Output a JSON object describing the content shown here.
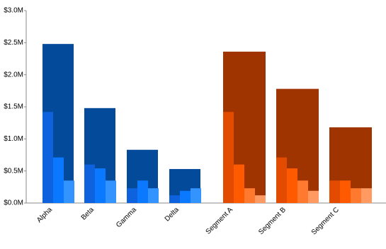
{
  "chart_data": {
    "type": "bar",
    "categories": [
      "Alpha",
      "Beta",
      "Gamma",
      "Delta",
      null,
      "Segment A",
      "Segment B",
      "Segment C"
    ],
    "series": [
      {
        "color": "#034a9b",
        "values": [
          2.48,
          1.48,
          0.83,
          0.53,
          null,
          null,
          null,
          null
        ]
      },
      {
        "color": "#a03400",
        "values": [
          null,
          null,
          null,
          null,
          null,
          2.36,
          1.78,
          1.18
        ]
      },
      {
        "color": "#0f62dd",
        "values": [
          1.42,
          0.6,
          0.23,
          0.12,
          null,
          null,
          null,
          null
        ]
      },
      {
        "color": "#0a78ff",
        "values": [
          0.71,
          0.54,
          0.35,
          0.19,
          null,
          null,
          null,
          null
        ]
      },
      {
        "color": "#3393ff",
        "values": [
          0.35,
          0.35,
          0.23,
          0.23,
          null,
          null,
          null,
          null
        ]
      },
      {
        "color": "#e34c00",
        "values": [
          null,
          null,
          null,
          null,
          null,
          1.42,
          0.71,
          0.35
        ]
      },
      {
        "color": "#ff5a00",
        "values": [
          null,
          null,
          null,
          null,
          null,
          0.6,
          0.54,
          0.35
        ]
      },
      {
        "color": "#ff7a2e",
        "values": [
          null,
          null,
          null,
          null,
          null,
          0.23,
          0.35,
          0.23
        ]
      },
      {
        "color": "#ff9a63",
        "values": [
          null,
          null,
          null,
          null,
          null,
          0.12,
          0.19,
          0.23
        ]
      }
    ],
    "ylim": [
      0,
      3.0
    ],
    "yticks": [
      {
        "value": 0,
        "label": "$0.0M"
      },
      {
        "value": 0.5,
        "label": "$0.5M"
      },
      {
        "value": 1.0,
        "label": "$1.0M"
      },
      {
        "value": 1.5,
        "label": "$1.5M"
      },
      {
        "value": 2.0,
        "label": "$2.0M"
      },
      {
        "value": 2.5,
        "label": "$2.5M"
      },
      {
        "value": 3.0,
        "label": "$3.0M"
      }
    ]
  }
}
